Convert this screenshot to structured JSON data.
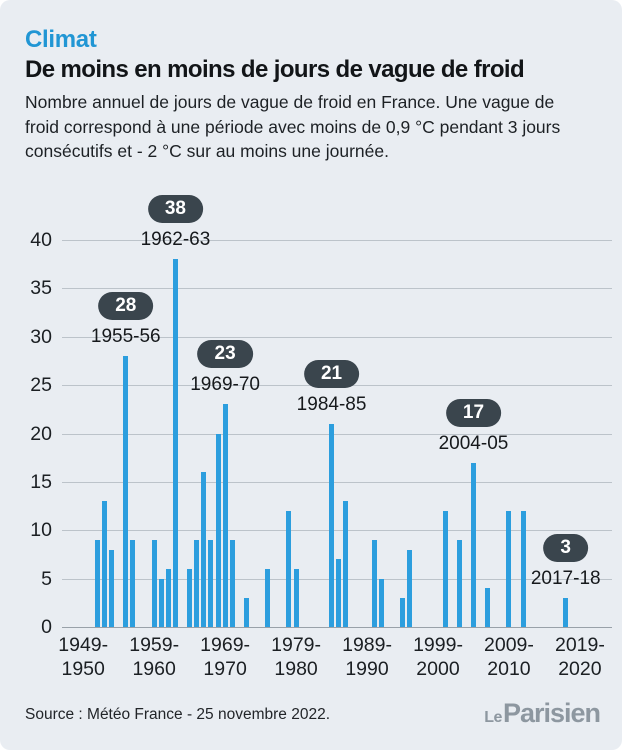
{
  "header": {
    "kicker": "Climat",
    "title": "De moins en moins de jours de vague de froid",
    "subtitle": "Nombre annuel de jours de vague de froid en France. Une vague de froid correspond à une période avec moins de 0,9 °C pendant 3 jours consécutifs et - 2 °C sur au moins une journée."
  },
  "chart_data": {
    "type": "bar",
    "title": "Nombre annuel de jours de vague de froid en France",
    "ylabel": "jours",
    "ylim": [
      0,
      40
    ],
    "yticks": [
      0,
      5,
      10,
      15,
      20,
      25,
      30,
      35,
      40
    ],
    "grid": true,
    "bar_color": "#2C9EDE",
    "pill_color": "#3A454D",
    "x_axis": {
      "start_year": 1949,
      "end_year": 2020,
      "tick_labels": [
        [
          "1949-",
          "1950"
        ],
        [
          "1959-",
          "1960"
        ],
        [
          "1969-",
          "1970"
        ],
        [
          "1979-",
          "1980"
        ],
        [
          "1989-",
          "1990"
        ],
        [
          "1999-",
          "2000"
        ],
        [
          "2009-",
          "2010"
        ],
        [
          "2019-",
          "2020"
        ]
      ]
    },
    "bars": [
      {
        "winter": "1951-52",
        "year_index": 2,
        "value": 9
      },
      {
        "winter": "1952-53",
        "year_index": 3,
        "value": 13
      },
      {
        "winter": "1953-54",
        "year_index": 4,
        "value": 8
      },
      {
        "winter": "1955-56",
        "year_index": 6,
        "value": 28
      },
      {
        "winter": "1956-57",
        "year_index": 7,
        "value": 9
      },
      {
        "winter": "1959-60",
        "year_index": 10,
        "value": 9
      },
      {
        "winter": "1960-61",
        "year_index": 11,
        "value": 5
      },
      {
        "winter": "1961-62",
        "year_index": 12,
        "value": 6
      },
      {
        "winter": "1962-63",
        "year_index": 13,
        "value": 38
      },
      {
        "winter": "1964-65",
        "year_index": 15,
        "value": 6
      },
      {
        "winter": "1965-66",
        "year_index": 16,
        "value": 9
      },
      {
        "winter": "1966-67",
        "year_index": 17,
        "value": 16
      },
      {
        "winter": "1967-68",
        "year_index": 18,
        "value": 9
      },
      {
        "winter": "1968-69",
        "year_index": 19,
        "value": 20
      },
      {
        "winter": "1969-70",
        "year_index": 20,
        "value": 23
      },
      {
        "winter": "1970-71",
        "year_index": 21,
        "value": 9
      },
      {
        "winter": "1972-73",
        "year_index": 23,
        "value": 3
      },
      {
        "winter": "1975-76",
        "year_index": 26,
        "value": 6
      },
      {
        "winter": "1978-79",
        "year_index": 29,
        "value": 12
      },
      {
        "winter": "1979-80",
        "year_index": 30,
        "value": 6
      },
      {
        "winter": "1984-85",
        "year_index": 35,
        "value": 21
      },
      {
        "winter": "1985-86",
        "year_index": 36,
        "value": 7
      },
      {
        "winter": "1986-87",
        "year_index": 37,
        "value": 13
      },
      {
        "winter": "1990-91",
        "year_index": 41,
        "value": 9
      },
      {
        "winter": "1991-92",
        "year_index": 42,
        "value": 5
      },
      {
        "winter": "1994-95",
        "year_index": 45,
        "value": 3
      },
      {
        "winter": "1995-96",
        "year_index": 46,
        "value": 8
      },
      {
        "winter": "2000-01",
        "year_index": 51,
        "value": 12
      },
      {
        "winter": "2002-03",
        "year_index": 53,
        "value": 9
      },
      {
        "winter": "2004-05",
        "year_index": 55,
        "value": 17
      },
      {
        "winter": "2006-07",
        "year_index": 57,
        "value": 4
      },
      {
        "winter": "2009-10",
        "year_index": 60,
        "value": 12
      },
      {
        "winter": "2011-12",
        "year_index": 62,
        "value": 12
      },
      {
        "winter": "2017-18",
        "year_index": 68,
        "value": 3
      }
    ],
    "annotations": [
      {
        "value": 38,
        "winter": "1962-63",
        "year_index": 13
      },
      {
        "value": 28,
        "winter": "1955-56",
        "year_index": 6
      },
      {
        "value": 23,
        "winter": "1969-70",
        "year_index": 20
      },
      {
        "value": 21,
        "winter": "1984-85",
        "year_index": 35
      },
      {
        "value": 17,
        "winter": "2004-05",
        "year_index": 55
      },
      {
        "value": 3,
        "winter": "2017-18",
        "year_index": 68
      }
    ]
  },
  "footer": {
    "source": "Source : Météo France - 25 novembre 2022.",
    "logo": {
      "prefix": "Le",
      "name": "Parisien"
    }
  },
  "colors": {
    "background": "#E9EDF2",
    "kicker": "#2196D4",
    "bar": "#2C9EDE",
    "pill": "#3A454D",
    "gridline": "#BCC3CA"
  }
}
